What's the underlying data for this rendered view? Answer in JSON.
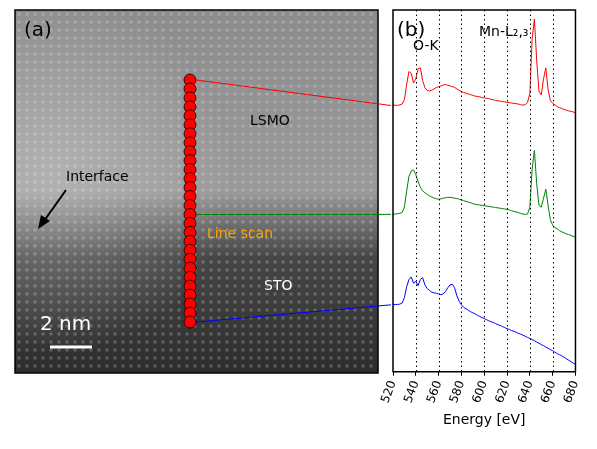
{
  "panel_a": {
    "label": "(a)",
    "top_layer": "LSMO",
    "bottom_layer": "STO",
    "interface": "Interface",
    "line_scan": "Line scan",
    "line_scan_points": 28,
    "scale_bar": "2 nm"
  },
  "chart_data": {
    "type": "line",
    "panel_label": "(b)",
    "x_label": "Energy [eV]",
    "annotations": [
      "O-K",
      "Mn-L₂,₃"
    ],
    "x": [
      520,
      522,
      524,
      526,
      528,
      530,
      532,
      534,
      536,
      538,
      540,
      542,
      544,
      546,
      548,
      550,
      552,
      554,
      556,
      558,
      560,
      562,
      564,
      566,
      568,
      570,
      572,
      574,
      576,
      578,
      580,
      582,
      584,
      586,
      588,
      590,
      592,
      594,
      596,
      598,
      600,
      602,
      604,
      606,
      608,
      610,
      612,
      614,
      616,
      618,
      620,
      622,
      624,
      626,
      628,
      630,
      632,
      634,
      636,
      638,
      640,
      642,
      644,
      646,
      648,
      650,
      652,
      654,
      656,
      658,
      660,
      662,
      664,
      666,
      668,
      670,
      672,
      674,
      676,
      678,
      680
    ],
    "xlim": [
      520,
      680
    ],
    "xticks": [
      520,
      540,
      560,
      580,
      600,
      620,
      640,
      660,
      680
    ],
    "ylim": [
      0,
      10
    ],
    "tick_labels": "x",
    "grid": true,
    "series": [
      {
        "color": "#ff0000",
        "line_scan_point": 0,
        "values": [
          7.36,
          7.37,
          7.36,
          7.38,
          7.4,
          7.52,
          7.95,
          8.3,
          8.25,
          7.98,
          8.1,
          8.38,
          8.4,
          8.05,
          7.85,
          7.78,
          7.76,
          7.78,
          7.82,
          7.86,
          7.88,
          7.9,
          7.93,
          7.94,
          7.92,
          7.9,
          7.88,
          7.86,
          7.82,
          7.78,
          7.74,
          7.72,
          7.7,
          7.68,
          7.66,
          7.64,
          7.62,
          7.61,
          7.6,
          7.58,
          7.57,
          7.56,
          7.55,
          7.53,
          7.52,
          7.5,
          7.49,
          7.48,
          7.47,
          7.46,
          7.45,
          7.44,
          7.43,
          7.42,
          7.41,
          7.4,
          7.38,
          7.37,
          7.38,
          7.45,
          7.7,
          9.2,
          9.75,
          8.6,
          7.75,
          7.65,
          8.1,
          8.4,
          7.8,
          7.5,
          7.42,
          7.38,
          7.33,
          7.3,
          7.28,
          7.25,
          7.23,
          7.21,
          7.2,
          7.18,
          7.16
        ]
      },
      {
        "color": "#008000",
        "line_scan_point": 15,
        "values": [
          4.35,
          4.36,
          4.37,
          4.38,
          4.4,
          4.55,
          5.0,
          5.4,
          5.55,
          5.58,
          5.45,
          5.25,
          5.1,
          5.0,
          4.95,
          4.9,
          4.86,
          4.83,
          4.8,
          4.78,
          4.77,
          4.78,
          4.8,
          4.81,
          4.82,
          4.82,
          4.81,
          4.8,
          4.79,
          4.77,
          4.75,
          4.73,
          4.71,
          4.69,
          4.67,
          4.65,
          4.63,
          4.62,
          4.61,
          4.6,
          4.59,
          4.58,
          4.57,
          4.56,
          4.55,
          4.54,
          4.53,
          4.52,
          4.51,
          4.5,
          4.49,
          4.47,
          4.45,
          4.43,
          4.42,
          4.4,
          4.38,
          4.36,
          4.35,
          4.36,
          4.55,
          5.6,
          6.12,
          5.2,
          4.6,
          4.55,
          4.8,
          5.05,
          4.6,
          4.2,
          4.05,
          3.98,
          3.95,
          3.9,
          3.87,
          3.84,
          3.81,
          3.79,
          3.77,
          3.74,
          3.72
        ]
      },
      {
        "color": "#0000ff",
        "line_scan_point": 27,
        "values": [
          1.85,
          1.86,
          1.86,
          1.87,
          1.9,
          2.05,
          2.35,
          2.55,
          2.62,
          2.45,
          2.5,
          2.38,
          2.55,
          2.6,
          2.4,
          2.3,
          2.25,
          2.2,
          2.18,
          2.17,
          2.15,
          2.13,
          2.15,
          2.22,
          2.32,
          2.4,
          2.42,
          2.32,
          2.1,
          1.95,
          1.85,
          1.78,
          1.74,
          1.7,
          1.66,
          1.63,
          1.6,
          1.56,
          1.53,
          1.5,
          1.47,
          1.44,
          1.41,
          1.38,
          1.36,
          1.33,
          1.3,
          1.28,
          1.25,
          1.22,
          1.19,
          1.17,
          1.14,
          1.12,
          1.09,
          1.06,
          1.04,
          1.01,
          0.98,
          0.95,
          0.92,
          0.89,
          0.86,
          0.82,
          0.79,
          0.75,
          0.72,
          0.68,
          0.65,
          0.61,
          0.58,
          0.54,
          0.5,
          0.47,
          0.44,
          0.4,
          0.36,
          0.32,
          0.28,
          0.24,
          0.2
        ]
      }
    ]
  }
}
